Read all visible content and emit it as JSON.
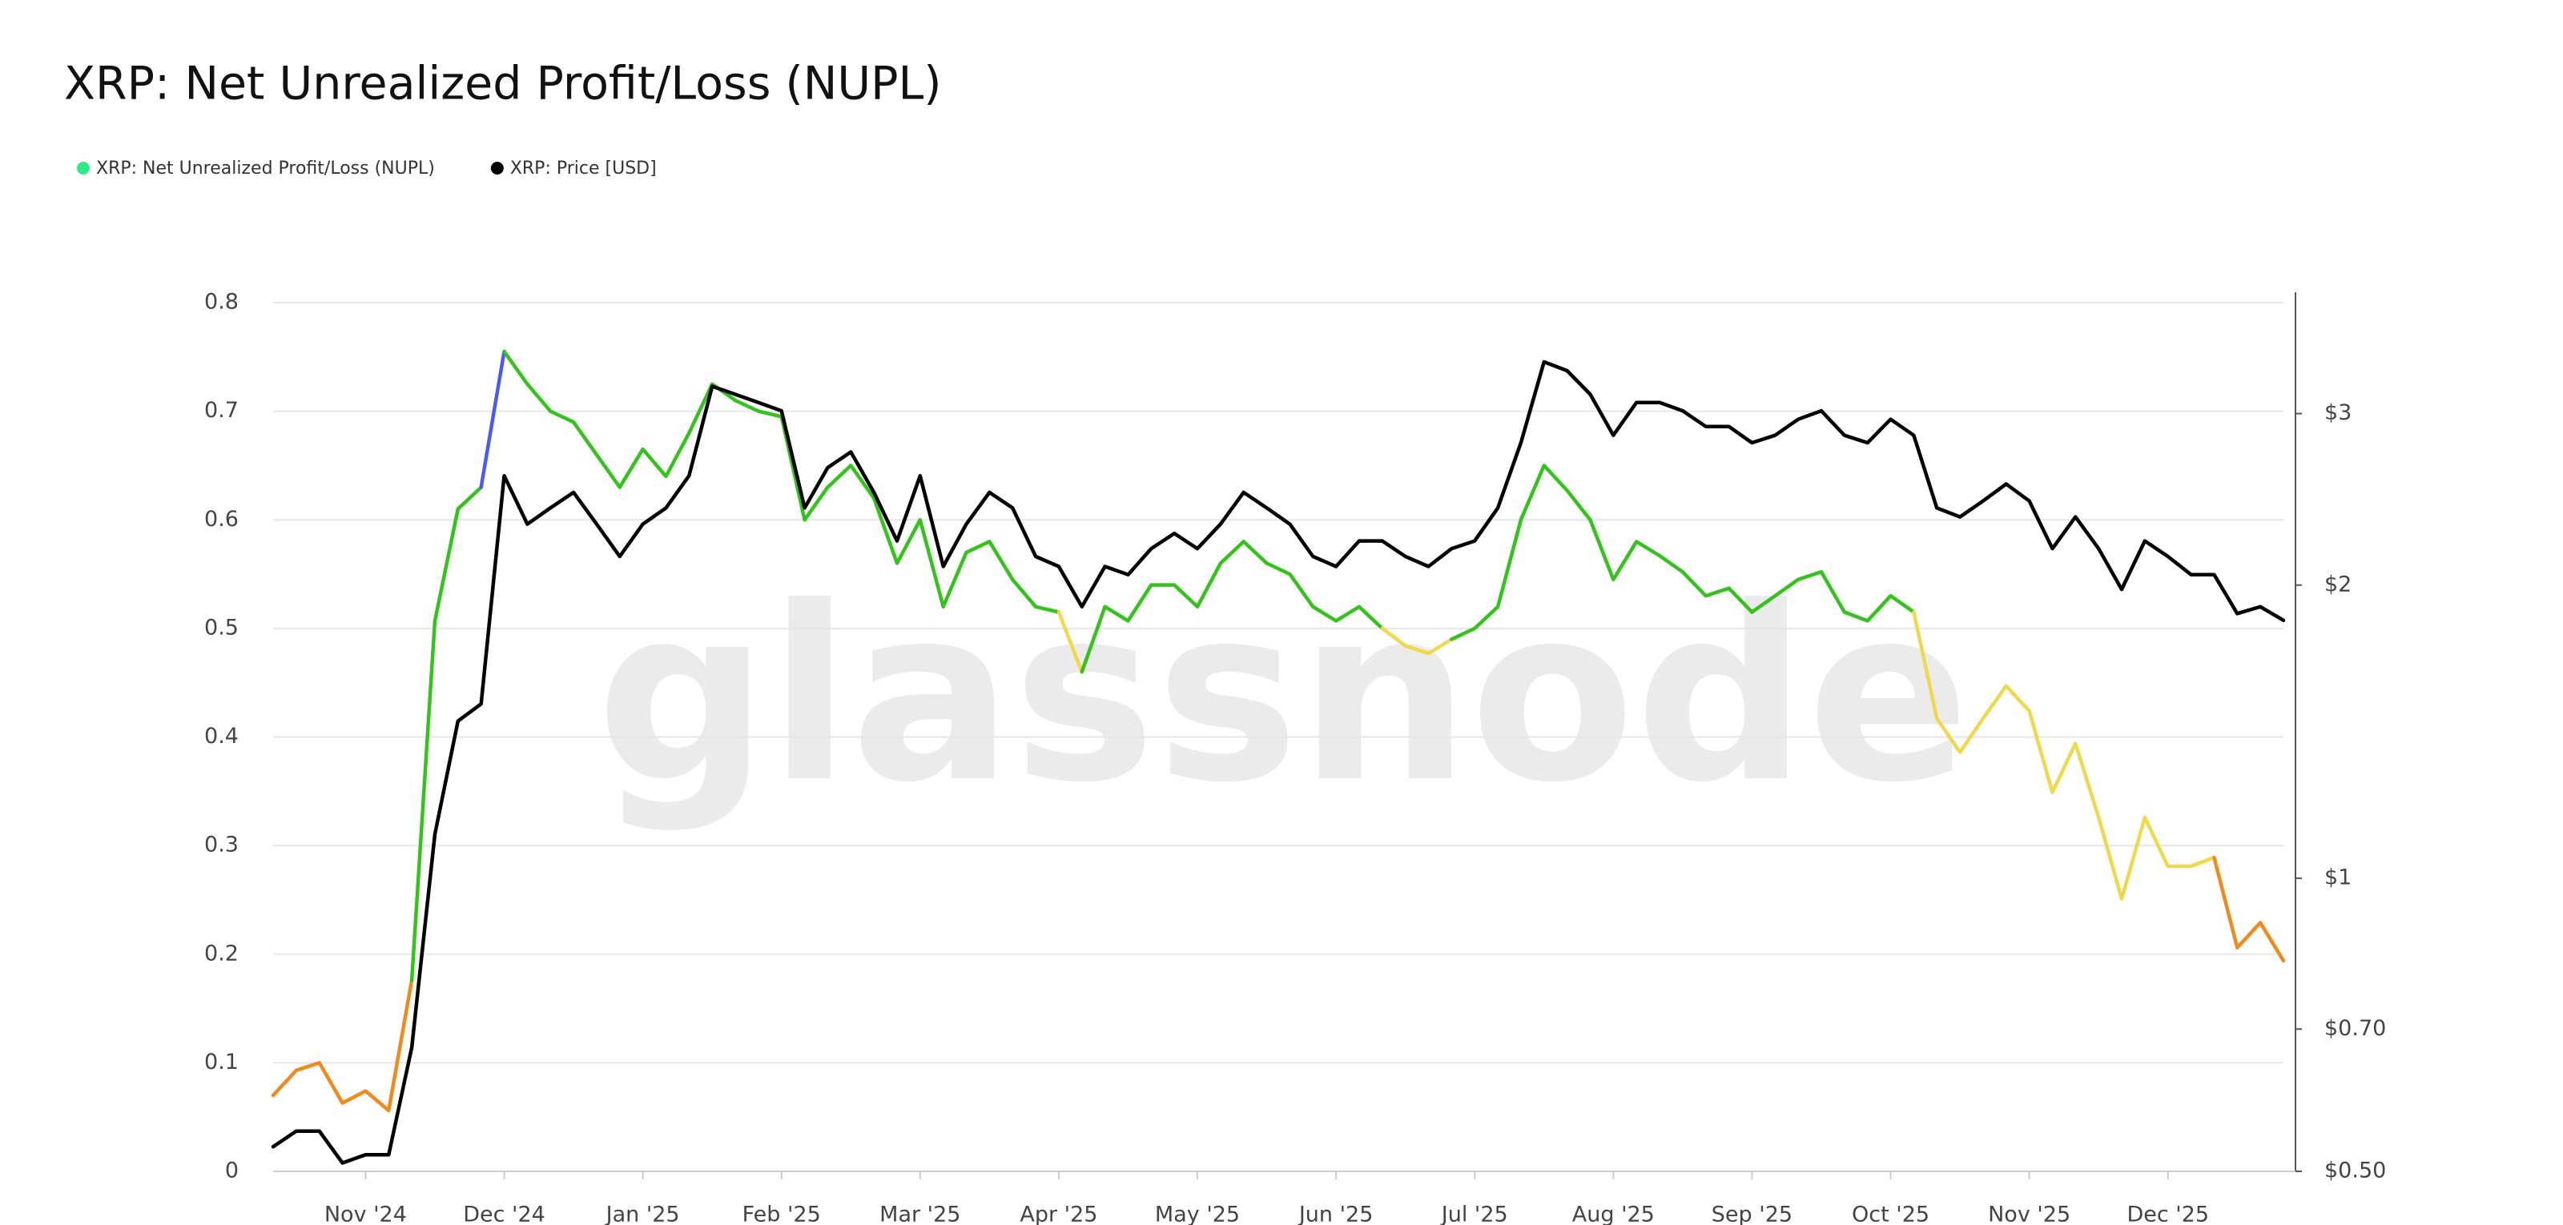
{
  "chart_data": {
    "type": "line",
    "title": "XRP: Net Unrealized Profit/Loss (NUPL)",
    "watermark": "glassnode",
    "categories": [
      null,
      null,
      null,
      null,
      "Nov '24",
      null,
      null,
      null,
      null,
      null,
      "Dec '24",
      null,
      null,
      null,
      null,
      null,
      "Jan '25",
      null,
      null,
      null,
      null,
      null,
      "Feb '25",
      null,
      null,
      null,
      null,
      null,
      "Mar '25",
      null,
      null,
      null,
      null,
      null,
      "Apr '25",
      null,
      null,
      null,
      null,
      null,
      "May '25",
      null,
      null,
      null,
      null,
      null,
      "Jun '25",
      null,
      null,
      null,
      null,
      null,
      "Jul '25",
      null,
      null,
      null,
      null,
      null,
      "Aug '25",
      null,
      null,
      null,
      null,
      null,
      "Sep '25",
      null,
      null,
      null,
      null,
      null,
      "Oct '25",
      null,
      null,
      null,
      null,
      null,
      "Nov '25",
      null,
      null,
      null,
      null,
      null,
      "Dec '25",
      null,
      null,
      null,
      null,
      null
    ],
    "series": [
      {
        "name": "XRP: Net Unrealized Profit/Loss (NUPL)",
        "color": "#2ee88a",
        "level_colors": [
          {
            "below": 0.25,
            "color": "#f08a1c"
          },
          {
            "below": 0.5,
            "color": "#f0d84c"
          },
          {
            "below": 0.75,
            "color": "#34c21c"
          },
          {
            "below": 1,
            "color": "#4a5bf0"
          }
        ],
        "values": [
          0.07,
          0.093,
          0.1,
          0.063,
          0.074,
          0.056,
          0.176,
          0.507,
          0.61,
          0.63,
          0.755,
          0.725,
          0.7,
          0.69,
          0.66,
          0.63,
          0.665,
          0.64,
          0.68,
          0.725,
          0.71,
          0.7,
          0.695,
          0.6,
          0.63,
          0.65,
          0.62,
          0.56,
          0.6,
          0.52,
          0.57,
          0.58,
          0.545,
          0.52,
          0.515,
          0.46,
          0.52,
          0.507,
          0.54,
          0.54,
          0.52,
          0.56,
          0.58,
          0.56,
          0.55,
          0.52,
          0.507,
          0.52,
          0.5,
          0.484,
          0.477,
          0.49,
          0.5,
          0.52,
          0.6,
          0.65,
          0.627,
          0.6,
          0.545,
          0.58,
          0.567,
          0.552,
          0.53,
          0.537,
          0.515,
          0.53,
          0.545,
          0.552,
          0.515,
          0.507,
          0.53,
          0.515,
          0.417,
          0.386,
          0.417,
          0.447,
          0.424,
          0.349,
          0.394,
          0.326,
          0.251,
          0.326,
          0.281,
          0.281,
          0.289,
          0.206,
          0.229,
          0.194
        ]
      },
      {
        "name": "XRP: Price [USD]",
        "color": "#000000",
        "axis": "y2",
        "values": [
          0.53,
          0.55,
          0.55,
          0.51,
          0.52,
          0.52,
          0.67,
          1.11,
          1.45,
          1.51,
          2.59,
          2.31,
          2.4,
          2.49,
          2.31,
          2.14,
          2.31,
          2.4,
          2.59,
          3.2,
          3.14,
          3.08,
          3.02,
          2.4,
          2.64,
          2.74,
          2.49,
          2.22,
          2.59,
          2.09,
          2.31,
          2.49,
          2.4,
          2.14,
          2.09,
          1.9,
          2.09,
          2.05,
          2.18,
          2.26,
          2.18,
          2.31,
          2.49,
          2.4,
          2.31,
          2.14,
          2.09,
          2.22,
          2.22,
          2.14,
          2.09,
          2.18,
          2.22,
          2.4,
          2.8,
          3.39,
          3.32,
          3.14,
          2.85,
          3.08,
          3.08,
          3.02,
          2.91,
          2.91,
          2.8,
          2.85,
          2.96,
          3.02,
          2.85,
          2.8,
          2.96,
          2.85,
          2.4,
          2.35,
          2.44,
          2.54,
          2.44,
          2.18,
          2.35,
          2.18,
          1.98,
          2.22,
          2.14,
          2.05,
          2.05,
          1.87,
          1.9,
          1.84
        ]
      }
    ],
    "ylim": [
      0,
      0.8
    ],
    "yticks": [
      0,
      0.1,
      0.2,
      0.3,
      0.4,
      0.5,
      0.6,
      0.7,
      0.8
    ],
    "y2lim": [
      0.5,
      3.9
    ],
    "y2scale": "log",
    "y2ticks": [
      {
        "value": 0.5,
        "label": "$0.50"
      },
      {
        "value": 0.7,
        "label": "$0.70"
      },
      {
        "value": 1,
        "label": "$1"
      },
      {
        "value": 2,
        "label": "$2"
      },
      {
        "value": 3,
        "label": "$3"
      }
    ],
    "grid": true
  }
}
